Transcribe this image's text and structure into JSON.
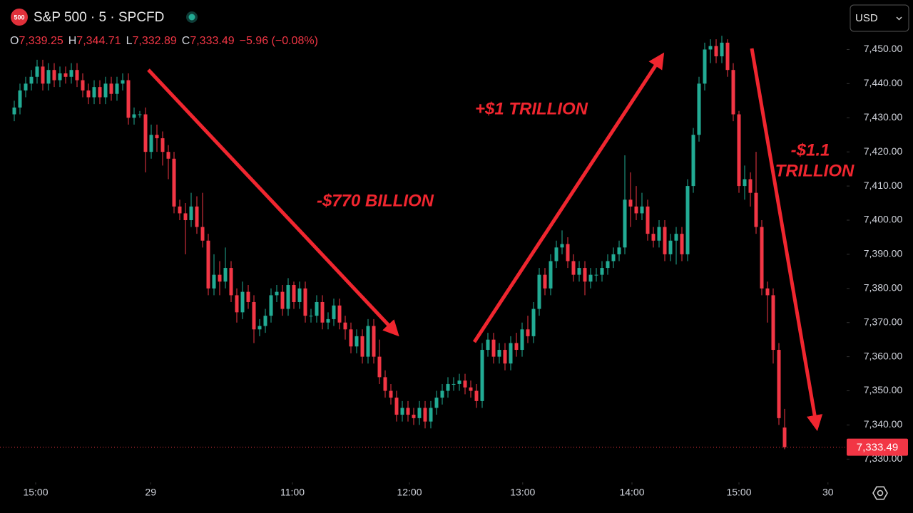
{
  "header": {
    "symbol_badge": "500",
    "title": "S&P 500 · 5 · SPCFD",
    "currency": "USD"
  },
  "chart_data": {
    "type": "candlestick",
    "ohlc_legend": [
      {
        "prefix": "O",
        "label": "7,339.25"
      },
      {
        "prefix": "H",
        "label": "7,344.71"
      },
      {
        "prefix": "L",
        "label": "7,332.89"
      },
      {
        "prefix": "C",
        "label": "7,333.49"
      }
    ],
    "change_label": "−5.96 (−0.08%)",
    "last_price_label": "7,333.49",
    "open": [
      7431,
      7433,
      7438,
      7440,
      7442,
      7445,
      7440,
      7444,
      7441,
      7443,
      7442,
      7444,
      7441,
      7438,
      7436,
      7439,
      7436,
      7440,
      7437,
      7440,
      7441,
      7430,
      7431,
      7431,
      7420,
      7425,
      7424,
      7420,
      7418,
      7404,
      7402,
      7400,
      7404,
      7398,
      7394,
      7380,
      7384,
      7382,
      7386,
      7378,
      7373,
      7379,
      7376,
      7368,
      7369,
      7372,
      7378,
      7379,
      7374,
      7381,
      7376,
      7380,
      7372,
      7372,
      7376,
      7370,
      7371,
      7375,
      7370,
      7368,
      7363,
      7366,
      7360,
      7369,
      7360,
      7354,
      7350,
      7348,
      7343,
      7345,
      7343,
      7342,
      7345,
      7341,
      7345,
      7348,
      7350,
      7352,
      7352,
      7353,
      7351,
      7350,
      7347,
      7362,
      7365,
      7360,
      7362,
      7358,
      7364,
      7362,
      7368,
      7366,
      7374,
      7384,
      7380,
      7388,
      7392,
      7393,
      7388,
      7384,
      7386,
      7382,
      7384,
      7384,
      7386,
      7388,
      7390,
      7392,
      7406,
      7404,
      7402,
      7404,
      7396,
      7394,
      7398,
      7390,
      7394,
      7396,
      7390,
      7410,
      7425,
      7440,
      7450,
      7451,
      7448,
      7452,
      7444,
      7431,
      7410,
      7412,
      7408,
      7398,
      7380,
      7378,
      7362,
      7339.25
    ],
    "high": [
      7435,
      7440,
      7442,
      7444,
      7447,
      7447,
      7446,
      7446,
      7445,
      7445,
      7446,
      7446,
      7443,
      7440,
      7441,
      7441,
      7442,
      7442,
      7442,
      7443,
      7443,
      7433,
      7432,
      7433,
      7428,
      7428,
      7426,
      7422,
      7420,
      7406,
      7405,
      7408,
      7407,
      7408,
      7396,
      7390,
      7388,
      7392,
      7388,
      7380,
      7382,
      7381,
      7378,
      7371,
      7374,
      7380,
      7381,
      7381,
      7383,
      7382,
      7382,
      7382,
      7374,
      7378,
      7378,
      7373,
      7377,
      7377,
      7372,
      7370,
      7368,
      7368,
      7371,
      7371,
      7365,
      7356,
      7352,
      7350,
      7347,
      7347,
      7345,
      7347,
      7347,
      7347,
      7350,
      7352,
      7354,
      7354,
      7355,
      7355,
      7353,
      7352,
      7364,
      7367,
      7367,
      7364,
      7364,
      7366,
      7367,
      7370,
      7372,
      7376,
      7386,
      7386,
      7390,
      7394,
      7397,
      7395,
      7390,
      7388,
      7388,
      7386,
      7386,
      7388,
      7390,
      7392,
      7394,
      7419,
      7414,
      7410,
      7408,
      7406,
      7398,
      7400,
      7400,
      7396,
      7398,
      7398,
      7412,
      7427,
      7442,
      7452,
      7453,
      7453,
      7454,
      7453,
      7446,
      7432,
      7416,
      7414,
      7420,
      7400,
      7382,
      7380,
      7364,
      7344.71
    ],
    "low": [
      7429,
      7431,
      7436,
      7438,
      7440,
      7438,
      7438,
      7439,
      7439,
      7440,
      7440,
      7439,
      7436,
      7434,
      7434,
      7434,
      7434,
      7435,
      7435,
      7438,
      7428,
      7428,
      7430,
      7414,
      7418,
      7420,
      7416,
      7412,
      7402,
      7400,
      7390,
      7398,
      7396,
      7392,
      7378,
      7378,
      7378,
      7380,
      7376,
      7370,
      7371,
      7374,
      7364,
      7366,
      7367,
      7370,
      7376,
      7372,
      7372,
      7374,
      7374,
      7370,
      7370,
      7370,
      7368,
      7368,
      7369,
      7368,
      7365,
      7361,
      7361,
      7358,
      7358,
      7358,
      7352,
      7348,
      7346,
      7341,
      7341,
      7341,
      7340,
      7340,
      7339,
      7339,
      7343,
      7346,
      7348,
      7350,
      7350,
      7349,
      7348,
      7345,
      7345,
      7360,
      7358,
      7358,
      7356,
      7356,
      7360,
      7360,
      7364,
      7364,
      7372,
      7378,
      7378,
      7386,
      7390,
      7386,
      7382,
      7382,
      7378,
      7380,
      7382,
      7382,
      7384,
      7386,
      7388,
      7390,
      7398,
      7400,
      7400,
      7394,
      7392,
      7392,
      7388,
      7388,
      7387,
      7388,
      7388,
      7408,
      7423,
      7438,
      7446,
      7446,
      7446,
      7442,
      7429,
      7408,
      7406,
      7404,
      7396,
      7378,
      7370,
      7358,
      7340,
      7332.89
    ],
    "close": [
      7433,
      7438,
      7440,
      7442,
      7445,
      7440,
      7444,
      7441,
      7443,
      7442,
      7444,
      7441,
      7438,
      7436,
      7439,
      7436,
      7440,
      7437,
      7440,
      7441,
      7430,
      7431,
      7431,
      7420,
      7425,
      7424,
      7420,
      7418,
      7404,
      7402,
      7400,
      7404,
      7398,
      7394,
      7380,
      7384,
      7382,
      7386,
      7378,
      7373,
      7379,
      7376,
      7368,
      7369,
      7372,
      7378,
      7379,
      7374,
      7381,
      7376,
      7380,
      7372,
      7372,
      7376,
      7370,
      7371,
      7375,
      7370,
      7368,
      7363,
      7366,
      7360,
      7369,
      7360,
      7354,
      7350,
      7348,
      7343,
      7345,
      7343,
      7342,
      7345,
      7341,
      7345,
      7348,
      7350,
      7352,
      7352,
      7353,
      7351,
      7350,
      7347,
      7362,
      7365,
      7360,
      7362,
      7358,
      7364,
      7362,
      7368,
      7366,
      7374,
      7384,
      7380,
      7388,
      7392,
      7393,
      7388,
      7384,
      7386,
      7382,
      7384,
      7384,
      7386,
      7388,
      7390,
      7392,
      7406,
      7404,
      7402,
      7404,
      7396,
      7394,
      7398,
      7390,
      7394,
      7396,
      7390,
      7410,
      7425,
      7440,
      7450,
      7451,
      7448,
      7452,
      7444,
      7431,
      7410,
      7412,
      7408,
      7398,
      7380,
      7378,
      7362,
      7342,
      7333.49
    ],
    "up_color": "#22ab94",
    "down_color": "#f23645",
    "xlim": [
      -2.5,
      145.625
    ],
    "ylim": [
      7323.6,
      7464.5
    ],
    "xticks": [
      {
        "value": 3.75,
        "label": "15:00"
      },
      {
        "value": 23.9,
        "label": "29"
      },
      {
        "value": 48.75,
        "label": "11:00"
      },
      {
        "value": 69.25,
        "label": "12:00"
      },
      {
        "value": 89.1,
        "label": "13:00"
      },
      {
        "value": 108.25,
        "label": "14:00"
      },
      {
        "value": 127,
        "label": "15:00"
      },
      {
        "value": 142.6,
        "label": "30"
      }
    ],
    "yticks": [
      {
        "value": 7330,
        "label": "7,330.00"
      },
      {
        "value": 7340,
        "label": "7,340.00"
      },
      {
        "value": 7350,
        "label": "7,350.00"
      },
      {
        "value": 7360,
        "label": "7,360.00"
      },
      {
        "value": 7370,
        "label": "7,370.00"
      },
      {
        "value": 7380,
        "label": "7,380.00"
      },
      {
        "value": 7390,
        "label": "7,390.00"
      },
      {
        "value": 7400,
        "label": "7,400.00"
      },
      {
        "value": 7410,
        "label": "7,410.00"
      },
      {
        "value": 7420,
        "label": "7,420.00"
      },
      {
        "value": 7430,
        "label": "7,430.00"
      },
      {
        "value": 7440,
        "label": "7,440.00"
      },
      {
        "value": 7450,
        "label": "7,450.00"
      }
    ],
    "annotations": [
      "-$770 BILLION",
      "+$1 TRILLION",
      "-$1.1",
      "TRILLION"
    ]
  }
}
